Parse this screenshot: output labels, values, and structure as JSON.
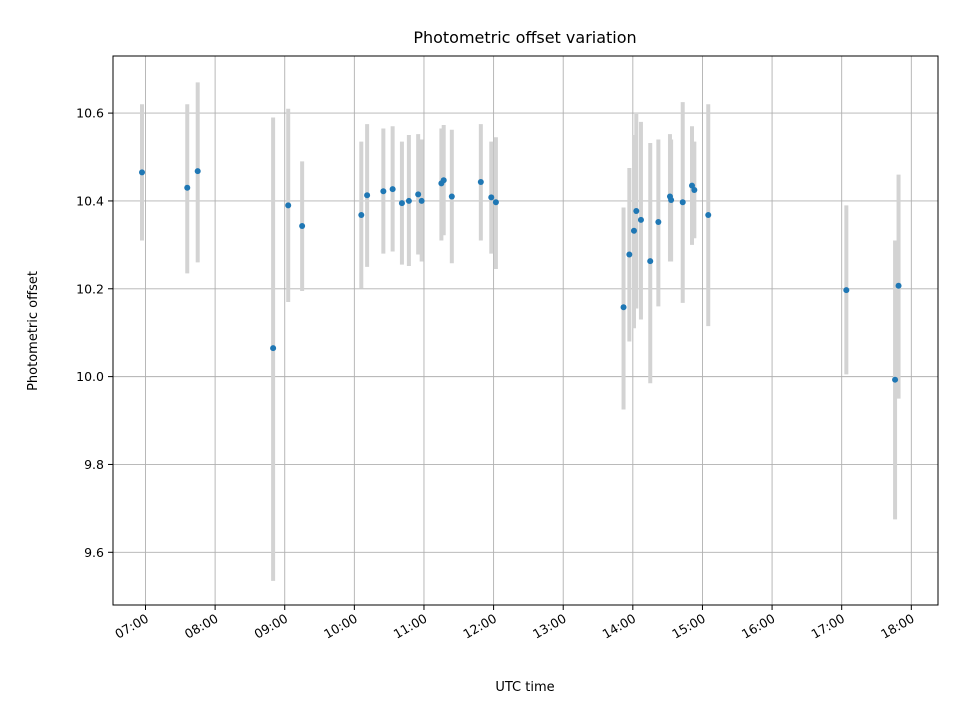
{
  "chart_data": {
    "type": "scatter",
    "title": "Photometric offset variation",
    "xlabel": "UTC time",
    "ylabel": "Photometric offset",
    "x_unit": "UTC time (HH:MM)",
    "xlim": [
      "06:32",
      "18:23"
    ],
    "ylim": [
      9.48,
      10.73
    ],
    "grid": true,
    "x_tick_labels": [
      "07:00",
      "08:00",
      "09:00",
      "10:00",
      "11:00",
      "12:00",
      "13:00",
      "14:00",
      "15:00",
      "16:00",
      "17:00",
      "18:00"
    ],
    "y_tick_labels": [
      "9.6",
      "9.8",
      "10.0",
      "10.2",
      "10.4",
      "10.6"
    ],
    "marker_color": "#1f77b4",
    "errorbar_color": "#d3d3d3",
    "series": [
      {
        "points": [
          {
            "x": "06:57",
            "y": 10.465,
            "ylo": 10.31,
            "yhi": 10.62
          },
          {
            "x": "07:36",
            "y": 10.43,
            "ylo": 10.235,
            "yhi": 10.62
          },
          {
            "x": "07:45",
            "y": 10.468,
            "ylo": 10.26,
            "yhi": 10.67
          },
          {
            "x": "08:50",
            "y": 10.065,
            "ylo": 9.535,
            "yhi": 10.59
          },
          {
            "x": "09:03",
            "y": 10.39,
            "ylo": 10.17,
            "yhi": 10.61
          },
          {
            "x": "09:15",
            "y": 10.343,
            "ylo": 10.195,
            "yhi": 10.49
          },
          {
            "x": "10:06",
            "y": 10.368,
            "ylo": 10.2,
            "yhi": 10.535
          },
          {
            "x": "10:11",
            "y": 10.413,
            "ylo": 10.25,
            "yhi": 10.575
          },
          {
            "x": "10:25",
            "y": 10.422,
            "ylo": 10.28,
            "yhi": 10.565
          },
          {
            "x": "10:33",
            "y": 10.427,
            "ylo": 10.285,
            "yhi": 10.57
          },
          {
            "x": "10:41",
            "y": 10.395,
            "ylo": 10.255,
            "yhi": 10.535
          },
          {
            "x": "10:47",
            "y": 10.4,
            "ylo": 10.252,
            "yhi": 10.55
          },
          {
            "x": "10:55",
            "y": 10.415,
            "ylo": 10.278,
            "yhi": 10.552
          },
          {
            "x": "10:58",
            "y": 10.4,
            "ylo": 10.262,
            "yhi": 10.54
          },
          {
            "x": "11:15",
            "y": 10.44,
            "ylo": 10.31,
            "yhi": 10.565
          },
          {
            "x": "11:17",
            "y": 10.447,
            "ylo": 10.322,
            "yhi": 10.573
          },
          {
            "x": "11:24",
            "y": 10.41,
            "ylo": 10.258,
            "yhi": 10.562
          },
          {
            "x": "11:49",
            "y": 10.443,
            "ylo": 10.31,
            "yhi": 10.575
          },
          {
            "x": "11:58",
            "y": 10.408,
            "ylo": 10.28,
            "yhi": 10.535
          },
          {
            "x": "12:02",
            "y": 10.397,
            "ylo": 10.245,
            "yhi": 10.545
          },
          {
            "x": "13:52",
            "y": 10.158,
            "ylo": 9.925,
            "yhi": 10.385
          },
          {
            "x": "13:57",
            "y": 10.278,
            "ylo": 10.08,
            "yhi": 10.475
          },
          {
            "x": "14:01",
            "y": 10.332,
            "ylo": 10.11,
            "yhi": 10.55
          },
          {
            "x": "14:03",
            "y": 10.377,
            "ylo": 10.155,
            "yhi": 10.598
          },
          {
            "x": "14:07",
            "y": 10.357,
            "ylo": 10.13,
            "yhi": 10.58
          },
          {
            "x": "14:15",
            "y": 10.263,
            "ylo": 9.985,
            "yhi": 10.532
          },
          {
            "x": "14:22",
            "y": 10.352,
            "ylo": 10.16,
            "yhi": 10.54
          },
          {
            "x": "14:32",
            "y": 10.41,
            "ylo": 10.262,
            "yhi": 10.552
          },
          {
            "x": "14:33",
            "y": 10.402,
            "ylo": 10.262,
            "yhi": 10.54
          },
          {
            "x": "14:43",
            "y": 10.397,
            "ylo": 10.168,
            "yhi": 10.625
          },
          {
            "x": "14:51",
            "y": 10.435,
            "ylo": 10.3,
            "yhi": 10.57
          },
          {
            "x": "14:53",
            "y": 10.425,
            "ylo": 10.315,
            "yhi": 10.535
          },
          {
            "x": "15:05",
            "y": 10.368,
            "ylo": 10.115,
            "yhi": 10.62
          },
          {
            "x": "17:04",
            "y": 10.197,
            "ylo": 10.005,
            "yhi": 10.39
          },
          {
            "x": "17:46",
            "y": 9.993,
            "ylo": 9.675,
            "yhi": 10.31
          },
          {
            "x": "17:49",
            "y": 10.207,
            "ylo": 9.95,
            "yhi": 10.46
          }
        ]
      }
    ]
  }
}
